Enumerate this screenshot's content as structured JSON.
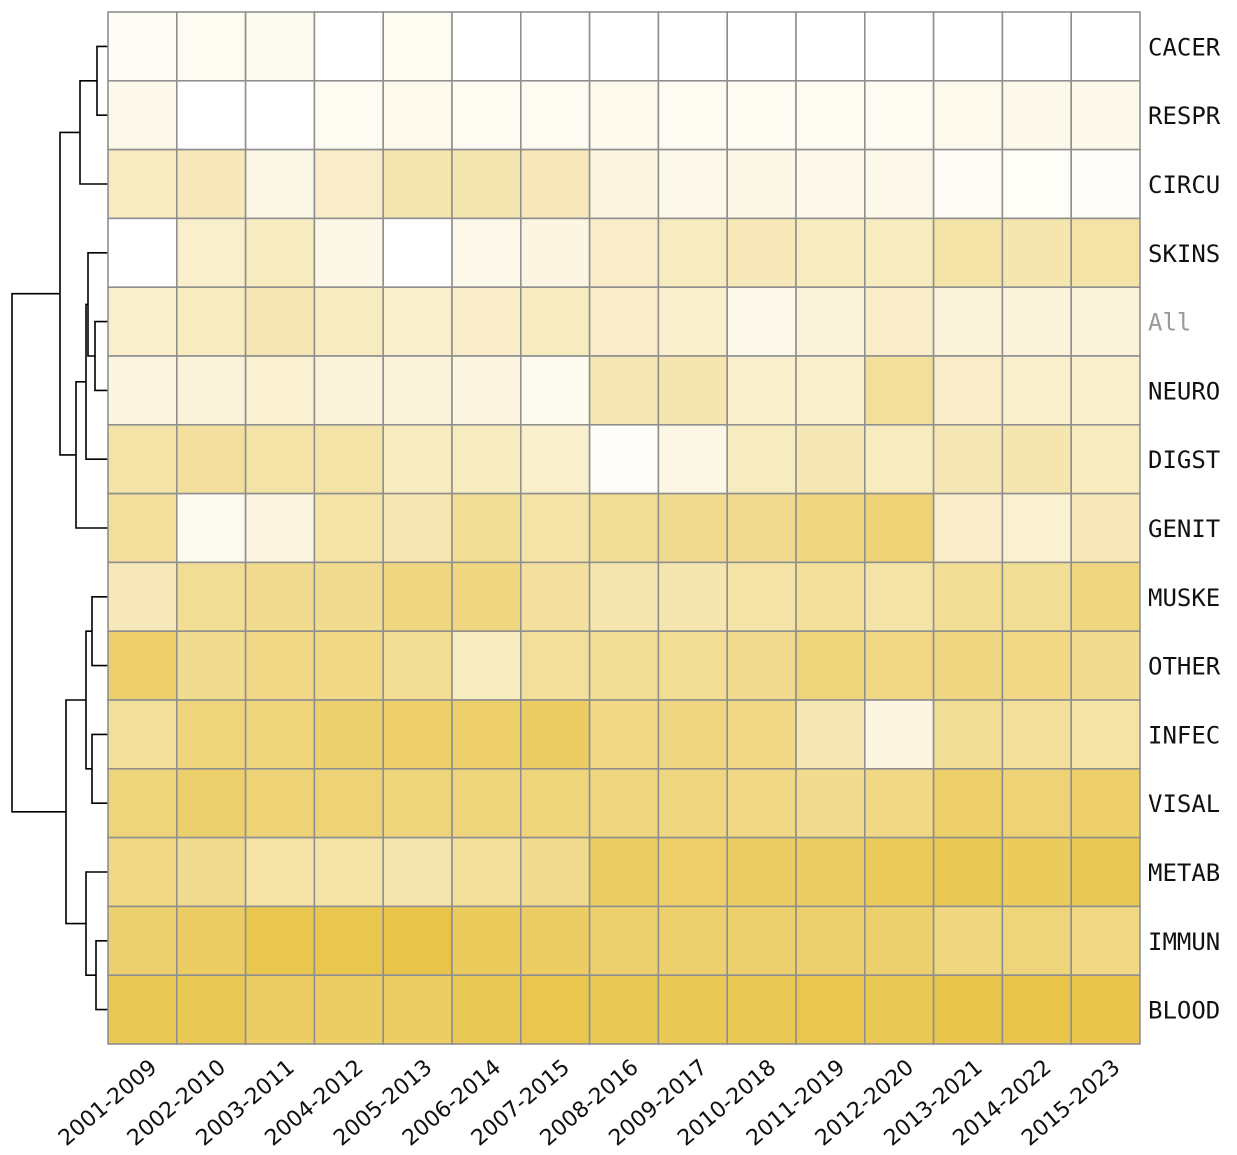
{
  "chart_data": {
    "type": "heatmap",
    "title": "",
    "xlabel": "",
    "ylabel": "",
    "colorscale": {
      "low": "#ffffff",
      "high": "#e8c54a"
    },
    "rows": [
      "CACER",
      "RESPR",
      "CIRCU",
      "SKINS",
      "All",
      "NEURO",
      "DIGST",
      "GENIT",
      "MUSKE",
      "OTHER",
      "INFEC",
      "VISAL",
      "METAB",
      "IMMUN",
      "BLOOD"
    ],
    "highlighted_row": "All",
    "columns": [
      "2001-2009",
      "2002-2010",
      "2003-2011",
      "2004-2012",
      "2005-2013",
      "2006-2014",
      "2007-2015",
      "2008-2016",
      "2009-2017",
      "2010-2018",
      "2011-2019",
      "2012-2020",
      "2013-2021",
      "2014-2022",
      "2015-2023"
    ],
    "values": [
      [
        0.04,
        0.05,
        0.06,
        0.0,
        0.05,
        0.0,
        0.0,
        0.0,
        0.0,
        0.0,
        0.0,
        0.0,
        0.0,
        0.0,
        0.0
      ],
      [
        0.08,
        0.0,
        0.0,
        0.05,
        0.07,
        0.05,
        0.05,
        0.07,
        0.05,
        0.05,
        0.05,
        0.05,
        0.07,
        0.08,
        0.08
      ],
      [
        0.25,
        0.28,
        0.1,
        0.22,
        0.32,
        0.32,
        0.28,
        0.12,
        0.08,
        0.1,
        0.08,
        0.08,
        0.04,
        0.03,
        0.02
      ],
      [
        0.0,
        0.2,
        0.25,
        0.1,
        0.0,
        0.08,
        0.12,
        0.22,
        0.25,
        0.28,
        0.25,
        0.25,
        0.35,
        0.32,
        0.35
      ],
      [
        0.2,
        0.25,
        0.3,
        0.25,
        0.2,
        0.22,
        0.25,
        0.22,
        0.2,
        0.08,
        0.15,
        0.22,
        0.15,
        0.15,
        0.15
      ],
      [
        0.12,
        0.15,
        0.18,
        0.15,
        0.15,
        0.12,
        0.06,
        0.3,
        0.32,
        0.2,
        0.2,
        0.4,
        0.22,
        0.2,
        0.2
      ],
      [
        0.35,
        0.38,
        0.35,
        0.35,
        0.25,
        0.25,
        0.2,
        0.02,
        0.1,
        0.25,
        0.3,
        0.25,
        0.3,
        0.32,
        0.25
      ],
      [
        0.4,
        0.06,
        0.12,
        0.35,
        0.3,
        0.42,
        0.35,
        0.42,
        0.45,
        0.45,
        0.5,
        0.55,
        0.22,
        0.18,
        0.28
      ],
      [
        0.28,
        0.42,
        0.45,
        0.45,
        0.5,
        0.5,
        0.38,
        0.32,
        0.32,
        0.35,
        0.4,
        0.35,
        0.42,
        0.42,
        0.5
      ],
      [
        0.6,
        0.45,
        0.48,
        0.48,
        0.42,
        0.25,
        0.4,
        0.42,
        0.42,
        0.45,
        0.52,
        0.48,
        0.5,
        0.48,
        0.45
      ],
      [
        0.4,
        0.52,
        0.52,
        0.58,
        0.6,
        0.6,
        0.62,
        0.48,
        0.5,
        0.48,
        0.3,
        0.12,
        0.42,
        0.4,
        0.35
      ],
      [
        0.52,
        0.58,
        0.55,
        0.55,
        0.52,
        0.52,
        0.52,
        0.5,
        0.5,
        0.48,
        0.45,
        0.48,
        0.6,
        0.55,
        0.6
      ],
      [
        0.48,
        0.45,
        0.35,
        0.35,
        0.32,
        0.4,
        0.45,
        0.62,
        0.6,
        0.62,
        0.62,
        0.65,
        0.68,
        0.65,
        0.68
      ],
      [
        0.58,
        0.62,
        0.7,
        0.7,
        0.72,
        0.65,
        0.62,
        0.58,
        0.58,
        0.58,
        0.58,
        0.58,
        0.5,
        0.52,
        0.48
      ],
      [
        0.68,
        0.68,
        0.62,
        0.62,
        0.62,
        0.68,
        0.7,
        0.68,
        0.68,
        0.68,
        0.7,
        0.68,
        0.72,
        0.72,
        0.72
      ]
    ],
    "grid": true,
    "legend": "none"
  }
}
